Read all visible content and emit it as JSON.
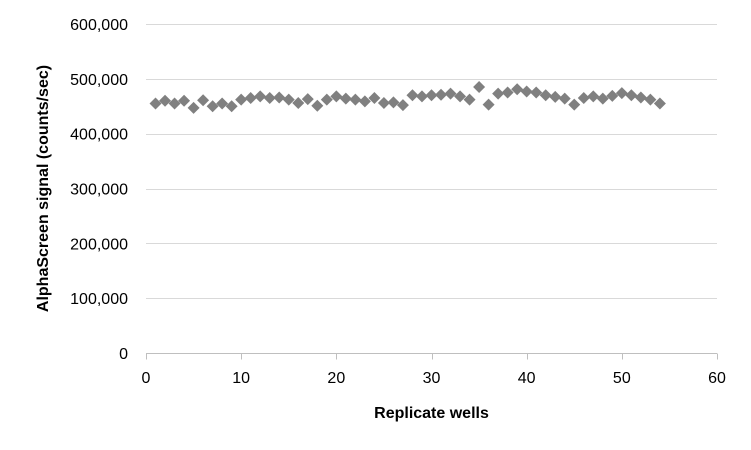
{
  "colors": {
    "marker": "#808080",
    "gridline": "#d9d9d9",
    "axis": "#bfbfbf"
  },
  "chart_data": {
    "type": "scatter",
    "marker": "diamond",
    "xlabel": "Replicate wells",
    "ylabel": "AlphaScreen signal (counts/sec)",
    "xlim": [
      0,
      60
    ],
    "ylim": [
      0,
      600000
    ],
    "x_ticks": [
      0,
      10,
      20,
      30,
      40,
      50,
      60
    ],
    "y_ticks": [
      0,
      100000,
      200000,
      300000,
      400000,
      500000,
      600000
    ],
    "x_tick_labels": [
      "0",
      "10",
      "20",
      "30",
      "40",
      "50",
      "60"
    ],
    "y_tick_labels": [
      "0",
      "100,000",
      "200,000",
      "300,000",
      "400,000",
      "500,000",
      "600,000"
    ],
    "grid": "horizontal major gridlines",
    "legend": "none",
    "series": [
      {
        "x": [
          1,
          2,
          3,
          4,
          5,
          6,
          7,
          8,
          9,
          10,
          11,
          12,
          13,
          14,
          15,
          16,
          17,
          18,
          19,
          20,
          21,
          22,
          23,
          24,
          25,
          26,
          27,
          28,
          29,
          30,
          31,
          32,
          33,
          34,
          35,
          36,
          37,
          38,
          39,
          40,
          41,
          42,
          43,
          44,
          45,
          46,
          47,
          48,
          49,
          50,
          51,
          52,
          53,
          54
        ],
        "y": [
          455000,
          460000,
          455000,
          460000,
          447000,
          461000,
          450000,
          455000,
          450000,
          462000,
          465000,
          468000,
          465000,
          466000,
          462000,
          456000,
          463000,
          451000,
          462000,
          468000,
          464000,
          462000,
          459000,
          465000,
          456000,
          457000,
          452000,
          470000,
          468000,
          470000,
          471000,
          473000,
          468000,
          462000,
          485000,
          453000,
          473000,
          475000,
          481000,
          477000,
          475000,
          470000,
          467000,
          464000,
          453000,
          465000,
          468000,
          464000,
          469000,
          474000,
          470000,
          466000,
          462000,
          455000
        ]
      }
    ]
  }
}
